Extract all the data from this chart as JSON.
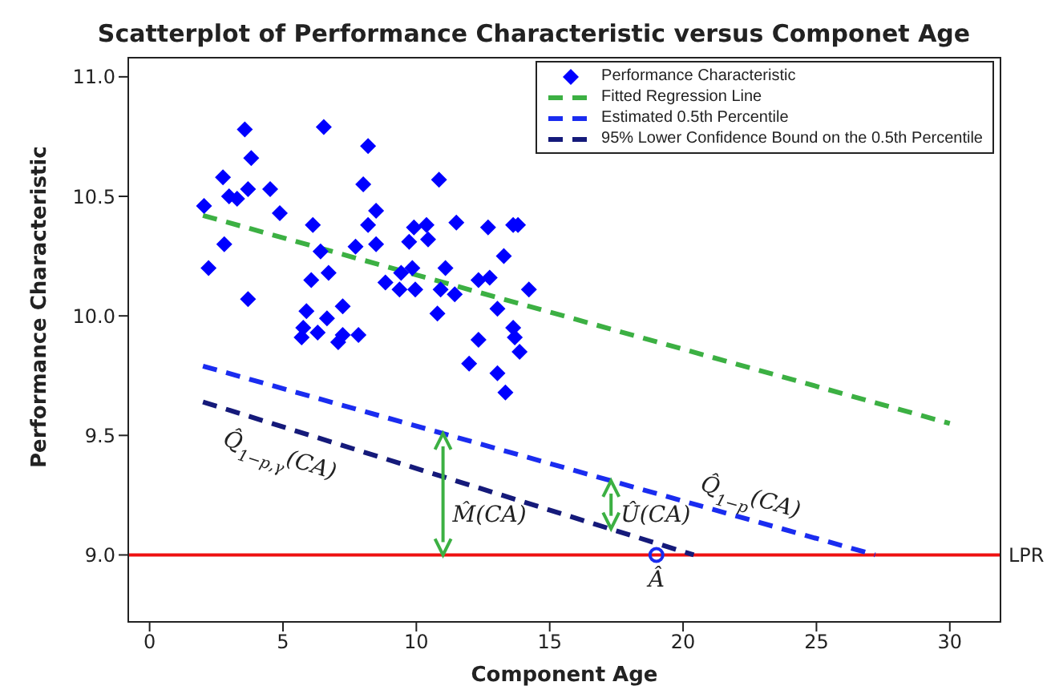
{
  "chart_data": {
    "type": "scatter",
    "title": "Scatterplot of Performance Characteristic versus Componet Age",
    "xlabel": "Component Age",
    "ylabel": "Performance Characteristic",
    "xlim": [
      -0.8,
      31.9
    ],
    "ylim": [
      8.72,
      11.08
    ],
    "xticks": [
      0,
      5,
      10,
      15,
      20,
      25,
      30
    ],
    "yticks": [
      {
        "value": 9.0,
        "label": "9.0"
      },
      {
        "value": 9.5,
        "label": "9.5"
      },
      {
        "value": 10.0,
        "label": "10.0"
      },
      {
        "value": 10.5,
        "label": "10.5"
      },
      {
        "value": 11.0,
        "label": "11.0"
      }
    ],
    "grid": false,
    "legend": "top right",
    "series": [
      {
        "name": "Performance Characteristic",
        "marker": "diamond",
        "color": "#0000ff",
        "x": [
          3.57,
          6.53,
          3.81,
          2.75,
          2.98,
          3.28,
          3.69,
          4.52,
          2.04,
          4.88,
          6.12,
          6.41,
          6.71,
          6.06,
          2.8,
          2.21,
          3.69,
          7.24,
          5.88,
          6.65,
          5.76,
          6.3,
          5.7,
          7.07,
          7.24,
          8.19,
          10.85,
          8.01,
          8.49,
          8.19,
          9.91,
          10.38,
          11.5,
          12.69,
          13.63,
          13.81,
          8.49,
          9.73,
          10.44,
          7.72,
          13.28,
          9.43,
          9.85,
          11.09,
          8.84,
          9.37,
          9.96,
          10.91,
          11.44,
          12.33,
          12.75,
          14.22,
          10.79,
          13.04,
          7.83,
          13.63,
          13.69,
          12.33,
          13.87,
          11.98,
          13.04,
          13.34
        ],
        "values": [
          10.78,
          10.79,
          10.66,
          10.58,
          10.5,
          10.49,
          10.53,
          10.53,
          10.46,
          10.43,
          10.38,
          10.27,
          10.18,
          10.15,
          10.3,
          10.2,
          10.07,
          10.04,
          10.02,
          9.99,
          9.95,
          9.93,
          9.91,
          9.89,
          9.92,
          10.71,
          10.57,
          10.55,
          10.44,
          10.38,
          10.37,
          10.38,
          10.39,
          10.37,
          10.38,
          10.38,
          10.3,
          10.31,
          10.32,
          10.29,
          10.25,
          10.18,
          10.2,
          10.2,
          10.14,
          10.11,
          10.11,
          10.11,
          10.09,
          10.15,
          10.16,
          10.11,
          10.01,
          10.03,
          9.92,
          9.95,
          9.91,
          9.9,
          9.85,
          9.8,
          9.76,
          9.68
        ]
      },
      {
        "name": "Fitted Regression Line",
        "type": "line",
        "line_style": "dashed",
        "marker": "none",
        "color": "#3cb043",
        "x": [
          2,
          30
        ],
        "values": [
          10.42,
          9.55
        ]
      },
      {
        "name": "Estimated 0.5th Percentile",
        "type": "line",
        "line_style": "dashed",
        "marker": "none",
        "color": "#1a2cf0",
        "x": [
          2,
          27.2
        ],
        "values": [
          9.79,
          9.0
        ]
      },
      {
        "name": "95% Lower Confidence Bound on the 0.5th Percentile",
        "type": "line",
        "line_style": "dashed",
        "marker": "none",
        "color": "#151a7a",
        "x": [
          2,
          20.4
        ],
        "values": [
          9.64,
          9.0
        ]
      },
      {
        "name": "Â",
        "marker": "circle",
        "color": "#1a2cf0",
        "x": [
          19
        ],
        "values": [
          9.0
        ]
      }
    ],
    "ref_lines": [
      {
        "axis": "y",
        "value": 9.0,
        "label": "LPR",
        "color": "#ee1111"
      }
    ],
    "annotations": [
      {
        "text": "M̂(CA)",
        "x": 11,
        "y": 9.0
      },
      {
        "text": "Û(CA)",
        "x": 17.3,
        "y": 9.11
      },
      {
        "text": "Q̂$_{1−p,γ}$(CA)",
        "x": 5.2,
        "y": 9.529
      },
      {
        "text": "Q̂$_{1−p}$(CA)",
        "x": 22.3,
        "y": 9.149
      }
    ]
  }
}
